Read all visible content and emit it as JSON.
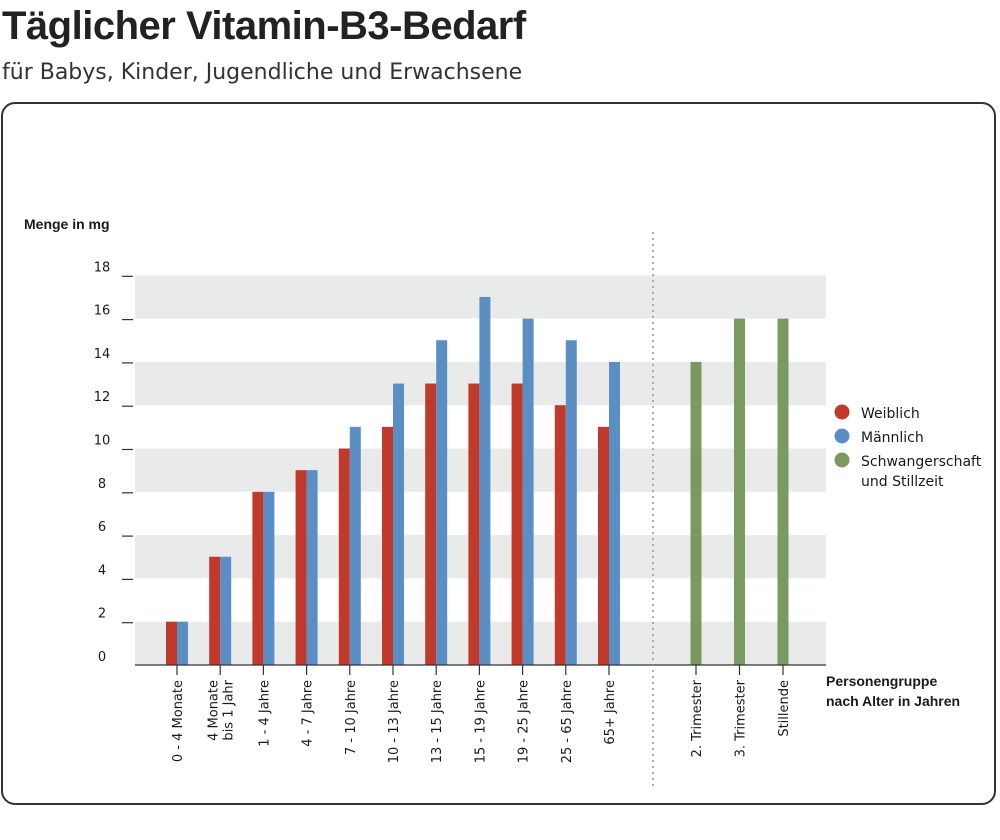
{
  "header": {
    "title": "Täglicher Vitamin-B3-Bedarf",
    "subtitle": "für Babys, Kinder, Jugendliche und Erwachsene"
  },
  "colors": {
    "weiblich": "#c0392b",
    "maennlich": "#5b8fc4",
    "schwangerschaft": "#7a9a5f",
    "band": "#e9ebeb"
  },
  "chart_data": {
    "type": "bar",
    "ylabel": "Menge in mg",
    "xlabel": [
      "Personengruppe",
      "nach Alter in Jahren"
    ],
    "ylim": [
      0,
      20
    ],
    "yticks": [
      0,
      2,
      4,
      6,
      8,
      10,
      12,
      14,
      16,
      18
    ],
    "grid": "alternating bands",
    "legend_position": "right",
    "legend": [
      {
        "name": "Weiblich",
        "color": "#c0392b"
      },
      {
        "name": "Männlich",
        "color": "#5b8fc4"
      },
      {
        "name": "Schwangerschaft\nund Stillzeit",
        "color": "#7a9a5f"
      }
    ],
    "groups": [
      {
        "label": "0 - 4 Monate",
        "weiblich": 2,
        "maennlich": 2
      },
      {
        "label": "4 Monate\nbis 1 Jahr",
        "weiblich": 5,
        "maennlich": 5
      },
      {
        "label": "1 - 4 Jahre",
        "weiblich": 8,
        "maennlich": 8
      },
      {
        "label": "4 - 7 Jahre",
        "weiblich": 9,
        "maennlich": 9
      },
      {
        "label": "7 - 10 Jahre",
        "weiblich": 10,
        "maennlich": 11
      },
      {
        "label": "10 - 13 Jahre",
        "weiblich": 11,
        "maennlich": 13
      },
      {
        "label": "13 - 15 Jahre",
        "weiblich": 13,
        "maennlich": 15
      },
      {
        "label": "15 - 19 Jahre",
        "weiblich": 13,
        "maennlich": 17
      },
      {
        "label": "19 - 25 Jahre",
        "weiblich": 13,
        "maennlich": 16
      },
      {
        "label": "25 - 65 Jahre",
        "weiblich": 12,
        "maennlich": 15
      },
      {
        "label": "65+ Jahre",
        "weiblich": 11,
        "maennlich": 14
      }
    ],
    "special": [
      {
        "label": "2. Trimester",
        "value": 14
      },
      {
        "label": "3. Trimester",
        "value": 16
      },
      {
        "label": "Stillende",
        "value": 16
      }
    ]
  }
}
